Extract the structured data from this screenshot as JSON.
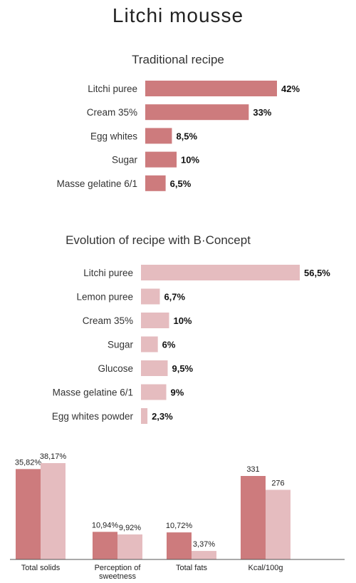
{
  "page": {
    "title": "Litchi mousse"
  },
  "colors": {
    "traditional": "#cd7b7d",
    "bconcept": "#e5bcbf",
    "axis": "#555555"
  },
  "chart_data": [
    {
      "type": "bar",
      "orientation": "horizontal",
      "title": "Traditional recipe",
      "categories": [
        "Litchi puree",
        "Cream 35%",
        "Egg whites",
        "Sugar",
        "Masse gelatine 6/1"
      ],
      "values": [
        42,
        33,
        8.5,
        10,
        6.5
      ],
      "value_labels": [
        "42%",
        "33%",
        "8,5%",
        "10%",
        "6,5%"
      ],
      "unit": "%"
    },
    {
      "type": "bar",
      "orientation": "horizontal",
      "title": "Evolution of recipe with B·Concept",
      "categories": [
        "Litchi puree",
        "Lemon puree",
        "Cream 35%",
        "Sugar",
        "Glucose",
        "Masse gelatine 6/1",
        "Egg whites powder"
      ],
      "values": [
        56.5,
        6.7,
        10,
        6,
        9.5,
        9,
        2.3
      ],
      "value_labels": [
        "56,5%",
        "6,7%",
        "10%",
        "6%",
        "9,5%",
        "9%",
        "2,3%"
      ],
      "unit": "%"
    },
    {
      "type": "bar",
      "orientation": "vertical",
      "categories": [
        "Total solids",
        "Perception of sweetness",
        "Total fats",
        "Kcal/100g"
      ],
      "category_lines": [
        [
          "Total solids"
        ],
        [
          "Perception of",
          "sweetness"
        ],
        [
          "Total fats"
        ],
        [
          "Kcal/100g"
        ]
      ],
      "series": [
        {
          "values": [
            35.82,
            10.94,
            10.72,
            331
          ],
          "value_labels": [
            "35,82%",
            "10,94%",
            "10,72%",
            "331"
          ]
        },
        {
          "values": [
            38.17,
            9.92,
            3.37,
            276
          ],
          "value_labels": [
            "38,17%",
            "9,92%",
            "3,37%",
            "276"
          ]
        }
      ]
    }
  ]
}
